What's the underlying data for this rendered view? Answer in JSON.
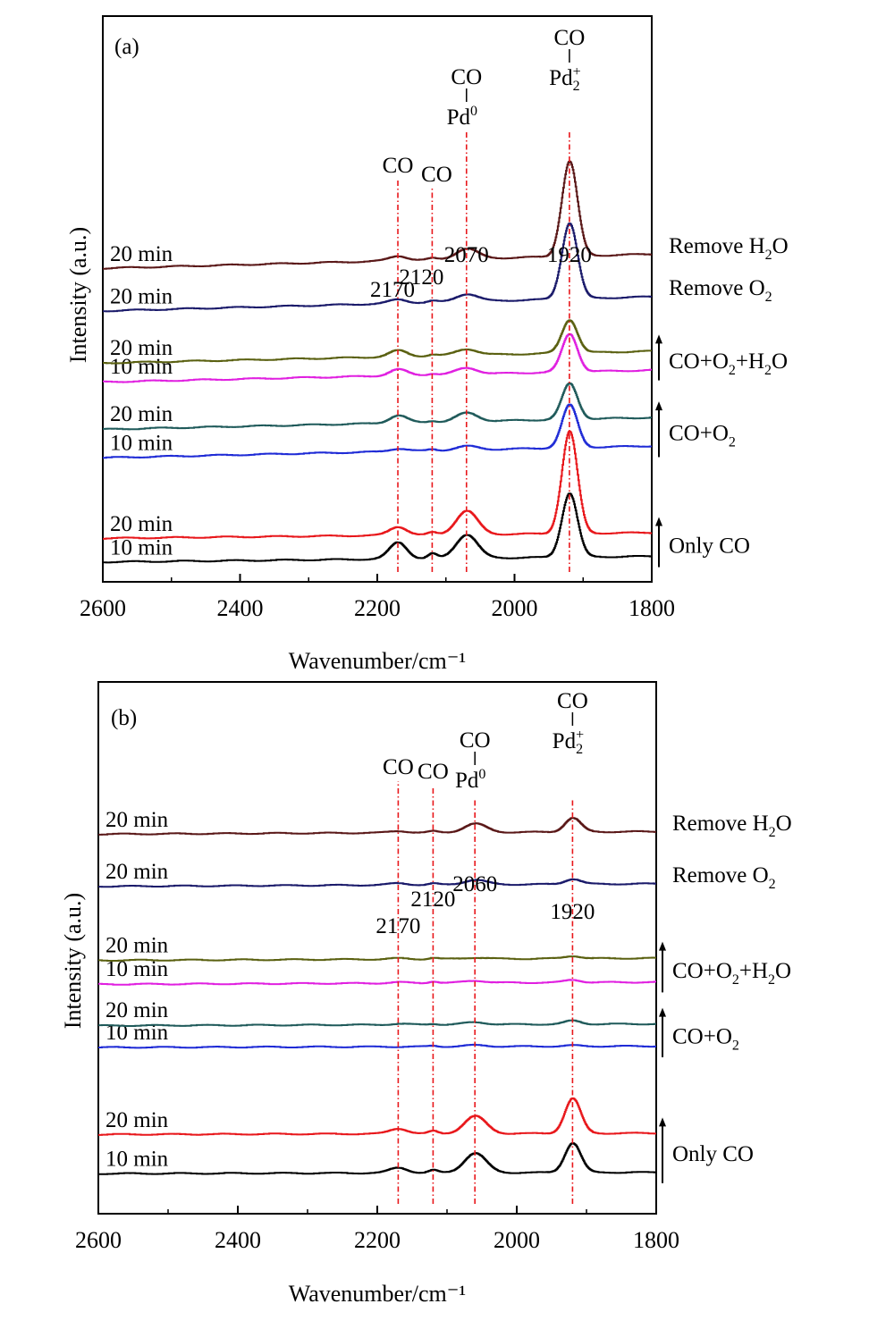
{
  "colors": {
    "ref_line": "#e8171b",
    "frame": "#000000"
  },
  "chart_data": [
    {
      "type": "line",
      "panel_label": "(a)",
      "xlabel": "Wavenumber/cm⁻¹",
      "ylabel": "Intensity (a.u.)",
      "xlim": [
        2600,
        1800
      ],
      "x_ticks": [
        2600,
        2400,
        2200,
        2000,
        1800
      ],
      "x_tick_labels": [
        "2600",
        "2400",
        "2200",
        "2000",
        "1800"
      ],
      "y_range": [
        0,
        100
      ],
      "reference_lines": [
        {
          "x": 2170,
          "label": "2170"
        },
        {
          "x": 2120,
          "label": "2120"
        },
        {
          "x": 2070,
          "label": "2070"
        },
        {
          "x": 1920,
          "label": "1920"
        }
      ],
      "peak_annotations": [
        {
          "x": 2170,
          "text": "CO"
        },
        {
          "x": 2120,
          "text": "CO"
        },
        {
          "x": 2070,
          "top": "CO",
          "base": "Pd",
          "sup": "0",
          "sub": ""
        },
        {
          "x": 1920,
          "top": "CO",
          "base": "Pd",
          "sup": "+",
          "sub": "2"
        }
      ],
      "condition_groups": [
        {
          "label": "Only CO",
          "arrow": true,
          "series": [
            0,
            1
          ]
        },
        {
          "label": "CO+O₂",
          "parts": [
            {
              "t": "CO+O"
            },
            {
              "t": "2",
              "sub": true
            }
          ],
          "arrow": true,
          "series": [
            2,
            3
          ]
        },
        {
          "label": "CO+O₂+H₂O",
          "parts": [
            {
              "t": "CO+O"
            },
            {
              "t": "2",
              "sub": true
            },
            {
              "t": "+H"
            },
            {
              "t": "2",
              "sub": true
            },
            {
              "t": "O"
            }
          ],
          "arrow": true,
          "series": [
            4,
            5
          ]
        },
        {
          "label": "Remove O₂",
          "parts": [
            {
              "t": "Remove O"
            },
            {
              "t": "2",
              "sub": true
            }
          ],
          "arrow": false,
          "series": [
            6
          ]
        },
        {
          "label": "Remove H₂O",
          "parts": [
            {
              "t": "Remove H"
            },
            {
              "t": "2",
              "sub": true
            },
            {
              "t": "O"
            }
          ],
          "arrow": false,
          "series": [
            7
          ]
        }
      ],
      "series": [
        {
          "name": "10 min",
          "color": "#000000",
          "baseline": 4,
          "slope": 1.2,
          "amps": [
            3.5,
            1.0,
            5.0,
            13.5
          ]
        },
        {
          "name": "20 min",
          "color": "#e8171b",
          "baseline": 9,
          "slope": 1.2,
          "amps": [
            1.8,
            0.5,
            5.0,
            21.5
          ]
        },
        {
          "name": "10 min",
          "color": "#1f2bd6",
          "baseline": 26,
          "slope": 2.5,
          "amps": [
            0.6,
            0.3,
            0.8,
            9.0
          ]
        },
        {
          "name": "20 min",
          "color": "#1f5a5a",
          "baseline": 32,
          "slope": 2.5,
          "amps": [
            1.6,
            0.3,
            1.8,
            7.5
          ]
        },
        {
          "name": "10 min",
          "color": "#e020e0",
          "baseline": 42,
          "slope": 2.5,
          "amps": [
            1.3,
            0.3,
            1.3,
            8.0
          ]
        },
        {
          "name": "20 min",
          "color": "#5a6010",
          "baseline": 46,
          "slope": 2.5,
          "amps": [
            1.3,
            0.3,
            1.3,
            7.0
          ]
        },
        {
          "name": "20 min",
          "color": "#1a1a6a",
          "baseline": 57,
          "slope": 3.0,
          "amps": [
            0.8,
            0.3,
            1.6,
            16.0
          ]
        },
        {
          "name": "20 min",
          "color": "#5a1818",
          "baseline": 66,
          "slope": 3.0,
          "amps": [
            1.0,
            0.3,
            2.2,
            20.0
          ]
        }
      ]
    },
    {
      "type": "line",
      "panel_label": "(b)",
      "xlabel": "Wavenumber/cm⁻¹",
      "ylabel": "Intensity (a.u.)",
      "xlim": [
        2600,
        1800
      ],
      "x_ticks": [
        2600,
        2400,
        2200,
        2000,
        1800
      ],
      "x_tick_labels": [
        "2600",
        "2400",
        "2200",
        "2000",
        "1800"
      ],
      "y_range": [
        0,
        100
      ],
      "reference_lines": [
        {
          "x": 2170,
          "label": "2170"
        },
        {
          "x": 2120,
          "label": "2120"
        },
        {
          "x": 2060,
          "label": "2060"
        },
        {
          "x": 1920,
          "label": "1920"
        }
      ],
      "peak_annotations": [
        {
          "x": 2170,
          "text": "CO"
        },
        {
          "x": 2120,
          "text": "CO"
        },
        {
          "x": 2060,
          "top": "CO",
          "base": "Pd",
          "sup": "0",
          "sub": ""
        },
        {
          "x": 1920,
          "top": "CO",
          "base": "Pd",
          "sup": "+",
          "sub": "2"
        }
      ],
      "condition_groups": [
        {
          "label": "Only CO",
          "arrow": true,
          "series": [
            0,
            1
          ]
        },
        {
          "label": "CO+O₂",
          "parts": [
            {
              "t": "CO+O"
            },
            {
              "t": "2",
              "sub": true
            }
          ],
          "arrow": true,
          "series": [
            2,
            3
          ]
        },
        {
          "label": "CO+O₂+H₂O",
          "parts": [
            {
              "t": "CO+O"
            },
            {
              "t": "2",
              "sub": true
            },
            {
              "t": "+H"
            },
            {
              "t": "2",
              "sub": true
            },
            {
              "t": "O"
            }
          ],
          "arrow": true,
          "series": [
            4,
            5
          ]
        },
        {
          "label": "Remove O₂",
          "parts": [
            {
              "t": "Remove O"
            },
            {
              "t": "2",
              "sub": true
            }
          ],
          "arrow": false,
          "series": [
            6
          ]
        },
        {
          "label": "Remove H₂O",
          "parts": [
            {
              "t": "Remove H"
            },
            {
              "t": "2",
              "sub": true
            },
            {
              "t": "O"
            }
          ],
          "arrow": false,
          "series": [
            7
          ]
        }
      ],
      "series": [
        {
          "name": "10 min",
          "color": "#000000",
          "baseline": 9,
          "slope": 0.3,
          "amps": [
            1.2,
            0.6,
            4.5,
            6.8
          ]
        },
        {
          "name": "20 min",
          "color": "#e8171b",
          "baseline": 18,
          "slope": 0.3,
          "amps": [
            1.2,
            0.6,
            4.0,
            8.0
          ]
        },
        {
          "name": "10 min",
          "color": "#1f2bd6",
          "baseline": 38,
          "slope": 0.3,
          "amps": [
            0.0,
            0.2,
            0.3,
            0.2
          ]
        },
        {
          "name": "20 min",
          "color": "#1f5a5a",
          "baseline": 43,
          "slope": 0.4,
          "amps": [
            0.2,
            0.2,
            0.5,
            0.8
          ]
        },
        {
          "name": "10 min",
          "color": "#e020e0",
          "baseline": 52.5,
          "slope": 0.5,
          "amps": [
            0.2,
            0.4,
            0.5,
            0.6
          ]
        },
        {
          "name": "20 min",
          "color": "#5a6010",
          "baseline": 58,
          "slope": 0.5,
          "amps": [
            0.2,
            0.3,
            0.3,
            0.6
          ]
        },
        {
          "name": "20 min",
          "color": "#1a1a6a",
          "baseline": 75,
          "slope": 0.6,
          "amps": [
            0.4,
            0.3,
            1.1,
            1.2
          ]
        },
        {
          "name": "20 min",
          "color": "#5a1818",
          "baseline": 87,
          "slope": 0.6,
          "amps": [
            0.4,
            0.3,
            2.0,
            3.2
          ]
        }
      ]
    }
  ]
}
